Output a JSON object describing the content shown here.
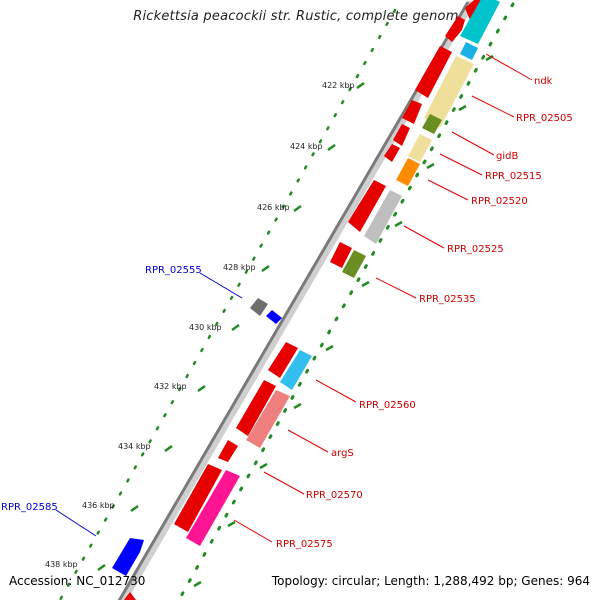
{
  "title": "Rickettsia peacockii str. Rustic, complete genome",
  "footer": {
    "accession_label": "Accession:",
    "accession": "NC_012730",
    "topology_text": "Topology: circular; Length: 1,288,492 bp; Genes: 964"
  },
  "colors": {
    "backbone": "#777777",
    "tick_dots": "#228b22",
    "forward_label": "#cc0000",
    "reverse_label": "#0000cc"
  },
  "kbp_ticks": [
    "422 kbp",
    "424 kbp",
    "426 kbp",
    "428 kbp",
    "430 kbp",
    "432 kbp",
    "434 kbp",
    "436 kbp",
    "438 kbp"
  ],
  "forward_gene_labels": [
    "ndk",
    "RPR_02505",
    "gidB",
    "RPR_02515",
    "RPR_02520",
    "RPR_02525",
    "RPR_02535",
    "RPR_02560",
    "argS",
    "RPR_02570",
    "RPR_02575"
  ],
  "reverse_gene_labels": [
    "RPR_02555",
    "RPR_02585"
  ]
}
